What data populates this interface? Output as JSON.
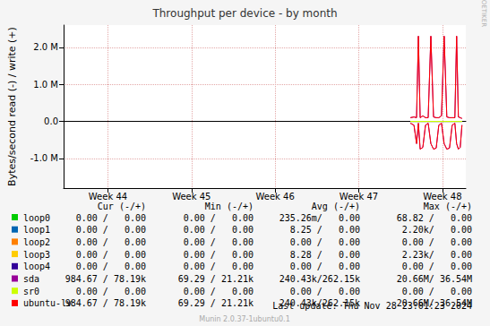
{
  "chart_data": {
    "type": "line",
    "title": "Throughput per device - by month",
    "y_label": "Bytes/second read (-) / write (+)",
    "side_text": "RRDTOOL / TOBI OETIKER",
    "last_update": "Last update: Thu Nov 28 23:01:23 2024",
    "footer": "Munin 2.0.37-1ubuntu0.1",
    "grid": true,
    "xlim": [
      43.97,
      48.78
    ],
    "xticks": [
      {
        "value": 44.5,
        "label": "Week 44"
      },
      {
        "value": 45.5,
        "label": "Week 45"
      },
      {
        "value": 46.5,
        "label": "Week 46"
      },
      {
        "value": 47.5,
        "label": "Week 47"
      },
      {
        "value": 48.5,
        "label": "Week 48"
      }
    ],
    "ylim": [
      -1800000,
      2600000
    ],
    "yticks": [
      {
        "value": -1000000,
        "label": "-1.0 M"
      },
      {
        "value": 0,
        "label": "0.0"
      },
      {
        "value": 1000000,
        "label": "1.0 M"
      },
      {
        "value": 2000000,
        "label": "2.0 M"
      }
    ],
    "legend_columns": [
      "Cur (-/+)",
      "Min (-/+)",
      "Avg (-/+)",
      "Max (-/+)"
    ],
    "x": [
      48.117,
      48.16,
      48.191,
      48.213,
      48.234,
      48.266,
      48.298,
      48.33,
      48.362,
      48.394,
      48.426,
      48.457,
      48.489,
      48.521,
      48.553,
      48.585,
      48.617,
      48.649,
      48.67,
      48.691,
      48.713,
      48.734
    ],
    "series": [
      {
        "name": "loop0",
        "color": "#00cc00",
        "cur": "0.00 /   0.00",
        "min": "0.00 /   0.00",
        "avg": "235.26m/   0.00",
        "max": "68.82 /   0.00",
        "values": [
          0,
          0,
          0,
          0,
          0,
          0,
          0,
          0,
          0,
          0,
          0,
          0,
          0,
          0,
          0,
          0,
          0,
          0,
          0,
          0,
          0,
          0
        ],
        "read": [
          0,
          0,
          0,
          0,
          0,
          0,
          0,
          0,
          0,
          0,
          0,
          0,
          0,
          0,
          0,
          0,
          0,
          0,
          0,
          0,
          0,
          0
        ]
      },
      {
        "name": "loop1",
        "color": "#0066b3",
        "cur": "0.00 /   0.00",
        "min": "0.00 /   0.00",
        "avg": "8.25 /   0.00",
        "max": "2.20k/   0.00",
        "values": [
          0,
          0,
          0,
          0,
          0,
          0,
          0,
          0,
          0,
          0,
          0,
          0,
          0,
          0,
          0,
          0,
          0,
          0,
          0,
          0,
          0,
          0
        ],
        "read": [
          0,
          0,
          0,
          0,
          0,
          0,
          0,
          0,
          0,
          0,
          0,
          0,
          0,
          0,
          0,
          0,
          0,
          0,
          0,
          0,
          0,
          0
        ]
      },
      {
        "name": "loop2",
        "color": "#ff8000",
        "cur": "0.00 /   0.00",
        "min": "0.00 /   0.00",
        "avg": "0.00 /   0.00",
        "max": "0.00 /   0.00",
        "values": [
          0,
          0,
          0,
          0,
          0,
          0,
          0,
          0,
          0,
          0,
          0,
          0,
          0,
          0,
          0,
          0,
          0,
          0,
          0,
          0,
          0,
          0
        ],
        "read": [
          0,
          0,
          0,
          0,
          0,
          0,
          0,
          0,
          0,
          0,
          0,
          0,
          0,
          0,
          0,
          0,
          0,
          0,
          0,
          0,
          0,
          0
        ]
      },
      {
        "name": "loop3",
        "color": "#ffcc00",
        "cur": "0.00 /   0.00",
        "min": "0.00 /   0.00",
        "avg": "8.28 /   0.00",
        "max": "2.23k/   0.00",
        "values": [
          0,
          0,
          0,
          0,
          0,
          0,
          0,
          0,
          0,
          0,
          0,
          0,
          0,
          0,
          0,
          0,
          0,
          0,
          0,
          0,
          0,
          0
        ],
        "read": [
          0,
          0,
          0,
          0,
          0,
          0,
          0,
          0,
          0,
          0,
          0,
          0,
          0,
          0,
          0,
          0,
          0,
          0,
          0,
          0,
          0,
          0
        ]
      },
      {
        "name": "loop4",
        "color": "#330099",
        "cur": "0.00 /   0.00",
        "min": "0.00 /   0.00",
        "avg": "0.00 /   0.00",
        "max": "0.00 /   0.00",
        "values": [
          0,
          0,
          0,
          0,
          0,
          0,
          0,
          0,
          0,
          0,
          0,
          0,
          0,
          0,
          0,
          0,
          0,
          0,
          0,
          0,
          0,
          0
        ],
        "read": [
          0,
          0,
          0,
          0,
          0,
          0,
          0,
          0,
          0,
          0,
          0,
          0,
          0,
          0,
          0,
          0,
          0,
          0,
          0,
          0,
          0,
          0
        ]
      },
      {
        "name": "sda",
        "color": "#990099",
        "cur": "984.67 / 78.19k",
        "min": "69.29 /  21.21k",
        "avg": "240.43k/ 262.15k",
        "max": "20.66M/  36.54M",
        "values": [
          100000,
          120000,
          100000,
          2300000,
          100000,
          150000,
          100000,
          100000,
          2300000,
          120000,
          100000,
          100000,
          150000,
          2300000,
          120000,
          100000,
          100000,
          100000,
          2300000,
          120000,
          100000,
          80000
        ],
        "read": [
          -50000,
          -100000,
          -600000,
          -50000,
          -750000,
          -700000,
          -100000,
          -50000,
          -600000,
          -750000,
          -720000,
          -100000,
          -50000,
          -600000,
          -750000,
          -720000,
          -100000,
          -50000,
          -600000,
          -750000,
          -700000,
          -100000
        ]
      },
      {
        "name": "sr0",
        "color": "#ccff00",
        "cur": "0.00 /   0.00",
        "min": "0.00 /   0.00",
        "avg": "0.00 /   0.00",
        "max": "0.00 /   0.00",
        "values": [
          0,
          0,
          0,
          0,
          0,
          0,
          0,
          0,
          0,
          0,
          0,
          0,
          0,
          0,
          0,
          0,
          0,
          0,
          0,
          0,
          0,
          0
        ],
        "read": [
          0,
          0,
          0,
          0,
          0,
          0,
          0,
          0,
          0,
          0,
          0,
          0,
          0,
          0,
          0,
          0,
          0,
          0,
          0,
          0,
          0,
          0
        ]
      },
      {
        "name": "ubuntu-lv",
        "color": "#ff0000",
        "cur": "984.67 / 78.19k",
        "min": "69.29 /  21.21k",
        "avg": "240.43k/ 262.15k",
        "max": "20.66M/  36.54M",
        "values": [
          100000,
          120000,
          100000,
          2300000,
          100000,
          150000,
          100000,
          100000,
          2300000,
          120000,
          100000,
          100000,
          150000,
          2300000,
          120000,
          100000,
          100000,
          100000,
          2300000,
          120000,
          100000,
          80000
        ],
        "read": [
          -50000,
          -100000,
          -600000,
          -50000,
          -750000,
          -700000,
          -100000,
          -50000,
          -600000,
          -750000,
          -720000,
          -100000,
          -50000,
          -600000,
          -750000,
          -720000,
          -100000,
          -50000,
          -600000,
          -750000,
          -700000,
          -100000
        ]
      }
    ]
  }
}
